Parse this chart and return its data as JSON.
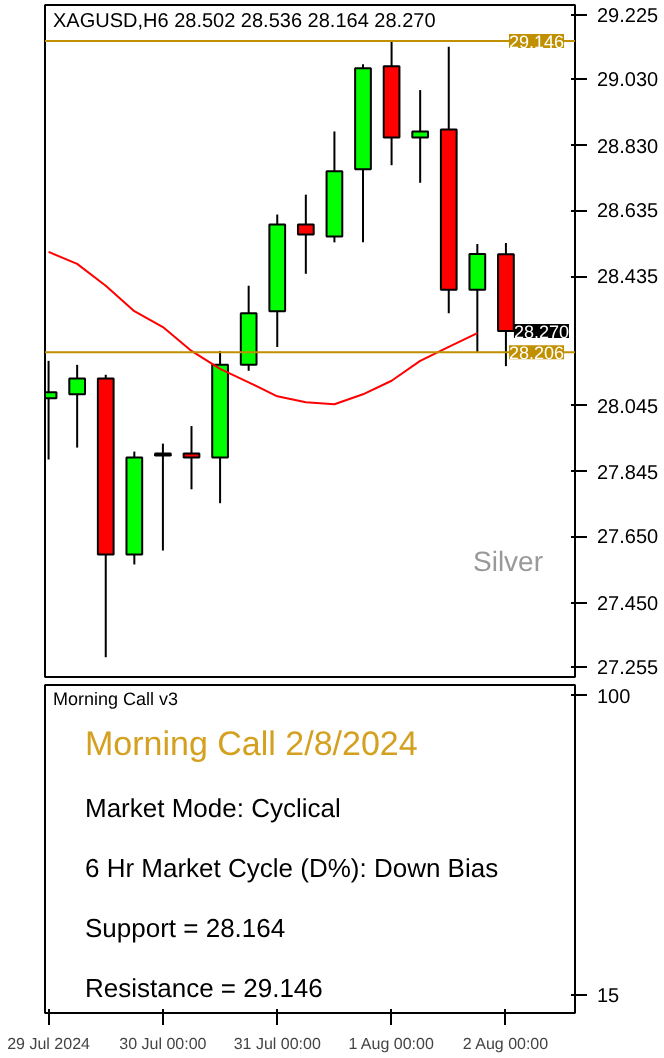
{
  "chart_data": [
    {
      "type": "candlestick",
      "title": "XAGUSD,H6  28.502 28.536 28.164 28.270",
      "x": [
        "2024-07-29T00:00",
        "2024-07-29T06:00",
        "2024-07-29T12:00",
        "2024-07-29T18:00",
        "2024-07-30T00:00",
        "2024-07-30T06:00",
        "2024-07-30T12:00",
        "2024-07-30T18:00",
        "2024-07-31T00:00",
        "2024-07-31T06:00",
        "2024-07-31T12:00",
        "2024-07-31T18:00",
        "2024-08-01T00:00",
        "2024-08-01T06:00",
        "2024-08-01T12:00",
        "2024-08-01T18:00",
        "2024-08-02T00:00"
      ],
      "ohlc": [
        [
          28.067,
          28.18,
          27.882,
          28.085
        ],
        [
          28.079,
          28.168,
          27.918,
          28.127
        ],
        [
          28.127,
          28.138,
          27.285,
          27.595
        ],
        [
          27.595,
          27.906,
          27.565,
          27.888
        ],
        [
          27.894,
          27.93,
          27.607,
          27.9
        ],
        [
          27.9,
          27.983,
          27.792,
          27.888
        ],
        [
          27.888,
          28.21,
          27.75,
          28.168
        ],
        [
          28.168,
          28.407,
          28.15,
          28.324
        ],
        [
          28.33,
          28.622,
          28.222,
          28.592
        ],
        [
          28.592,
          28.682,
          28.443,
          28.562
        ],
        [
          28.556,
          28.873,
          28.538,
          28.753
        ],
        [
          28.759,
          29.076,
          28.538,
          29.064
        ],
        [
          29.07,
          29.146,
          28.771,
          28.855
        ],
        [
          28.855,
          28.998,
          28.718,
          28.873
        ],
        [
          28.879,
          29.129,
          28.324,
          28.395
        ],
        [
          28.395,
          28.533,
          28.204,
          28.503
        ],
        [
          28.502,
          28.536,
          28.164,
          28.27
        ]
      ],
      "colors": [
        "#00ff00",
        "#00ff00",
        "#ff0000",
        "#00ff00",
        "#00ff00",
        "#ff0000",
        "#00ff00",
        "#00ff00",
        "#00ff00",
        "#ff0000",
        "#00ff00",
        "#00ff00",
        "#ff0000",
        "#00ff00",
        "#ff0000",
        "#00ff00",
        "#ff0000"
      ],
      "series": [
        {
          "type": "line",
          "color": "#ff0000",
          "values": [
            28.509,
            28.473,
            28.407,
            28.33,
            28.282,
            28.21,
            28.156,
            28.115,
            28.073,
            28.055,
            28.049,
            28.079,
            28.12,
            28.18,
            28.222,
            28.264,
            null
          ]
        }
      ],
      "xlim": [
        "2024-07-28T23:15",
        "2024-08-02T14:30"
      ],
      "ylim": [
        27.225,
        29.255
      ],
      "yticks": [
        {
          "value": 27.255,
          "label": "27.255"
        },
        {
          "value": 27.45,
          "label": "27.450"
        },
        {
          "value": 27.65,
          "label": "27.650"
        },
        {
          "value": 27.845,
          "label": "27.845"
        },
        {
          "value": 28.045,
          "label": "28.045"
        },
        {
          "value": 28.435,
          "label": "28.435"
        },
        {
          "value": 28.635,
          "label": "28.635"
        },
        {
          "value": 28.83,
          "label": "28.830"
        },
        {
          "value": 29.03,
          "label": "29.030"
        },
        {
          "value": 29.225,
          "label": "29.225"
        }
      ],
      "ref_lines": [
        {
          "axis": "y",
          "value": 29.146,
          "label": "29.146",
          "color": "#c09000"
        },
        {
          "axis": "y",
          "value": 28.206,
          "label": "28.206",
          "color": "#c09000"
        }
      ],
      "annotations": [
        {
          "text": "28.270",
          "x": "2024-08-02T00:00",
          "y": 28.27
        },
        "Silver"
      ],
      "tick_labels": "y"
    },
    {
      "type": "line",
      "title": "Morning Call v3",
      "subtitle": "Morning Call 2/8/2024",
      "annotations": [
        "Market Mode: Cyclical",
        "6 Hr Market Cycle (D%): Down Bias",
        "Support = 28.164",
        "Resistance = 29.146"
      ],
      "xlim": [
        "2024-07-28T23:15",
        "2024-08-02T14:30"
      ],
      "xticks": [
        {
          "value": "2024-07-29T00:00",
          "label": "29 Jul 2024"
        },
        {
          "value": "2024-07-30T00:00",
          "label": "30 Jul 00:00"
        },
        {
          "value": "2024-07-31T00:00",
          "label": "31 Jul 00:00"
        },
        {
          "value": "2024-08-01T00:00",
          "label": "1 Aug 00:00"
        },
        {
          "value": "2024-08-02T00:00",
          "label": "2 Aug 00:00"
        }
      ],
      "ylim": [
        10,
        103
      ],
      "yticks": [
        15,
        100
      ]
    }
  ]
}
